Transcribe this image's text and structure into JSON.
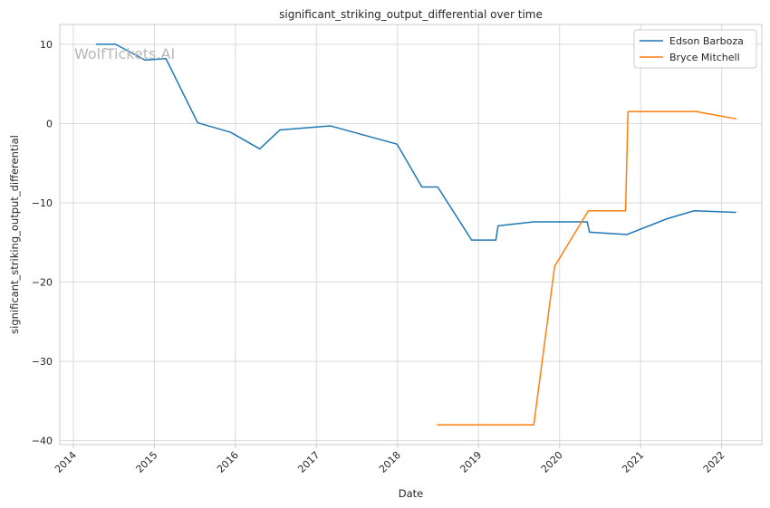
{
  "chart_data": {
    "type": "line",
    "title": "significant_striking_output_differential over time",
    "xlabel": "Date",
    "ylabel": "significant_striking_output_differential",
    "watermark": "WolfTickets.AI",
    "x_ticks": [
      "2014",
      "2015",
      "2016",
      "2017",
      "2018",
      "2019",
      "2020",
      "2021",
      "2022"
    ],
    "y_ticks": [
      "10",
      "0",
      "−10",
      "−20",
      "−30",
      "−40"
    ],
    "ylim": [
      -40.5,
      12.5
    ],
    "xlim": [
      "2013-11-01",
      "2022-07-01"
    ],
    "grid": true,
    "legend_position": "top-right",
    "series": [
      {
        "name": "Edson Barboza",
        "color": "#1f77b4",
        "points": [
          [
            "2014-04-15",
            10.0
          ],
          [
            "2014-07-10",
            10.0
          ],
          [
            "2014-11-20",
            8.0
          ],
          [
            "2015-02-22",
            8.2
          ],
          [
            "2015-07-15",
            0.1
          ],
          [
            "2015-12-10",
            -1.1
          ],
          [
            "2016-04-20",
            -3.2
          ],
          [
            "2016-07-20",
            -0.8
          ],
          [
            "2017-03-05",
            -0.3
          ],
          [
            "2017-12-30",
            -2.6
          ],
          [
            "2018-04-21",
            -8.0
          ],
          [
            "2018-07-01",
            -8.0
          ],
          [
            "2018-12-01",
            -14.7
          ],
          [
            "2019-03-20",
            -14.7
          ],
          [
            "2019-03-30",
            -12.9
          ],
          [
            "2019-09-07",
            -12.4
          ],
          [
            "2020-05-05",
            -12.4
          ],
          [
            "2020-05-15",
            -13.7
          ],
          [
            "2020-10-31",
            -14.0
          ],
          [
            "2021-05-01",
            -12.0
          ],
          [
            "2021-08-30",
            -11.0
          ],
          [
            "2022-03-05",
            -11.2
          ]
        ]
      },
      {
        "name": "Bryce Mitchell",
        "color": "#ff7f0e",
        "points": [
          [
            "2018-06-30",
            -38.0
          ],
          [
            "2019-09-07",
            -38.0
          ],
          [
            "2019-12-10",
            -18.0
          ],
          [
            "2020-05-10",
            -11.0
          ],
          [
            "2020-10-25",
            -11.0
          ],
          [
            "2020-11-05",
            1.5
          ],
          [
            "2021-09-10",
            1.5
          ],
          [
            "2022-03-05",
            0.6
          ]
        ]
      }
    ]
  }
}
